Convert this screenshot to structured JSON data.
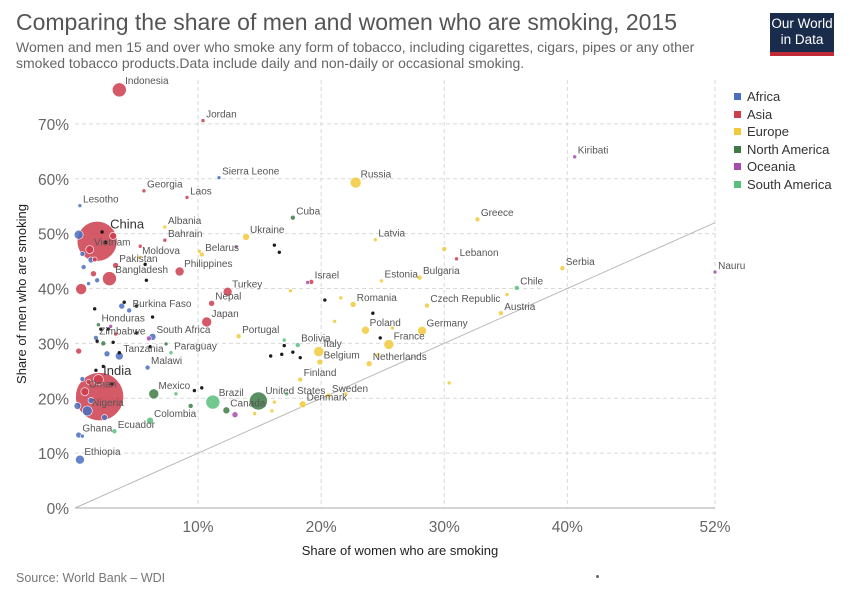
{
  "title": "Comparing the share of men and women who are smoking, 2015",
  "subtitle": "Women and men 15 and over who smoke any form of tobacco, including cigarettes, cigars, pipes or any other smoked tobacco products.Data include daily and non-daily or occasional smoking.",
  "logo": {
    "line1": "Our World",
    "line2": "in Data"
  },
  "source": "Source: World Bank – WDI",
  "colors": {
    "Africa": "#4a6fc1",
    "Asia": "#cc3d4e",
    "Europe": "#f2c93a",
    "North America": "#3e7a45",
    "Oceania": "#a64cb0",
    "South America": "#59c07c",
    "unlabeled": "#111111"
  },
  "chart_data": {
    "type": "scatter",
    "title": "Comparing the share of men and women who are smoking, 2015",
    "xlabel": "Share of women who are smoking",
    "ylabel": "Share of men who are smoking",
    "xlim": [
      0,
      52
    ],
    "ylim": [
      0,
      78
    ],
    "x_ticks": [
      {
        "value": 10,
        "label": "10%"
      },
      {
        "value": 20,
        "label": "20%"
      },
      {
        "value": 30,
        "label": "30%"
      },
      {
        "value": 40,
        "label": "40%"
      },
      {
        "value": 52,
        "label": "52%"
      }
    ],
    "y_ticks": [
      {
        "value": 0,
        "label": "0%"
      },
      {
        "value": 10,
        "label": "10%"
      },
      {
        "value": 20,
        "label": "20%"
      },
      {
        "value": 30,
        "label": "30%"
      },
      {
        "value": 40,
        "label": "40%"
      },
      {
        "value": 50,
        "label": "50%"
      },
      {
        "value": 60,
        "label": "60%"
      },
      {
        "value": 70,
        "label": "70%"
      }
    ],
    "grid": true,
    "legend_position": "right",
    "legend": [
      "Africa",
      "Asia",
      "Europe",
      "North America",
      "Oceania",
      "South America"
    ],
    "reference_line": "x = y",
    "points": [
      {
        "name": "Indonesia",
        "region": "Asia",
        "x": 3.6,
        "y": 76.2,
        "size": 7
      },
      {
        "name": "Jordan",
        "region": "Asia",
        "x": 10.4,
        "y": 70.6,
        "size": 2
      },
      {
        "name": "Sierra Leone",
        "region": "Africa",
        "x": 11.7,
        "y": 60.2,
        "size": 2
      },
      {
        "name": "Russia",
        "region": "Europe",
        "x": 22.8,
        "y": 59.3,
        "size": 5.5
      },
      {
        "name": "Kiribati",
        "region": "Oceania",
        "x": 40.6,
        "y": 64.0,
        "size": 2
      },
      {
        "name": "Georgia",
        "region": "Asia",
        "x": 5.6,
        "y": 57.8,
        "size": 2
      },
      {
        "name": "Laos",
        "region": "Asia",
        "x": 9.1,
        "y": 56.6,
        "size": 2
      },
      {
        "name": "Lesotho",
        "region": "Africa",
        "x": 0.4,
        "y": 55.1,
        "size": 2
      },
      {
        "name": "Cuba",
        "region": "North America",
        "x": 17.7,
        "y": 52.9,
        "size": 2.5
      },
      {
        "name": "Greece",
        "region": "Europe",
        "x": 32.7,
        "y": 52.6,
        "size": 2.5
      },
      {
        "name": "China",
        "region": "Asia",
        "x": 1.8,
        "y": 48.6,
        "size": 20
      },
      {
        "name": "Vietnam",
        "region": "Asia",
        "x": 1.2,
        "y": 47.1,
        "size": 4
      },
      {
        "name": "Albania",
        "region": "Europe",
        "x": 7.3,
        "y": 51.2,
        "size": 2
      },
      {
        "name": "Bahrain",
        "region": "Asia",
        "x": 7.3,
        "y": 48.8,
        "size": 2
      },
      {
        "name": "Ukraine",
        "region": "Europe",
        "x": 13.9,
        "y": 49.4,
        "size": 3.5
      },
      {
        "name": "Latvia",
        "region": "Europe",
        "x": 24.4,
        "y": 48.9,
        "size": 2
      },
      {
        "name": "Moldova",
        "region": "Europe",
        "x": 5.2,
        "y": 45.7,
        "size": 2
      },
      {
        "name": "Belarus",
        "region": "Europe",
        "x": 10.3,
        "y": 46.2,
        "size": 2.5
      },
      {
        "name": "Lebanon",
        "region": "Asia",
        "x": 31.0,
        "y": 45.4,
        "size": 2
      },
      {
        "name": "Serbia",
        "region": "Europe",
        "x": 39.6,
        "y": 43.7,
        "size": 2.5
      },
      {
        "name": "Nauru",
        "region": "Oceania",
        "x": 52.0,
        "y": 43.0,
        "size": 2
      },
      {
        "name": "Pakistan",
        "region": "Asia",
        "x": 3.3,
        "y": 44.2,
        "size": 3
      },
      {
        "name": "Philippines",
        "region": "Asia",
        "x": 8.5,
        "y": 43.1,
        "size": 4.5
      },
      {
        "name": "Bangladesh",
        "region": "Asia",
        "x": 2.8,
        "y": 41.8,
        "size": 7
      },
      {
        "name": "Israel",
        "region": "Asia",
        "x": 19.2,
        "y": 41.2,
        "size": 2.5
      },
      {
        "name": "Estonia",
        "region": "Europe",
        "x": 24.9,
        "y": 41.4,
        "size": 2
      },
      {
        "name": "Bulgaria",
        "region": "Europe",
        "x": 28.0,
        "y": 42.0,
        "size": 2.5
      },
      {
        "name": "Chile",
        "region": "South America",
        "x": 35.9,
        "y": 40.1,
        "size": 2.5
      },
      {
        "name": "Turkey",
        "region": "Asia",
        "x": 12.4,
        "y": 39.4,
        "size": 4.5
      },
      {
        "name": "Nepal",
        "region": "Asia",
        "x": 11.1,
        "y": 37.3,
        "size": 3
      },
      {
        "name": "Burkina Faso",
        "region": "Africa",
        "x": 4.4,
        "y": 36.0,
        "size": 2.5
      },
      {
        "name": "Romania",
        "region": "Europe",
        "x": 22.6,
        "y": 37.1,
        "size": 3
      },
      {
        "name": "Czech Republic",
        "region": "Europe",
        "x": 28.6,
        "y": 36.9,
        "size": 2.5
      },
      {
        "name": "Austria",
        "region": "Europe",
        "x": 34.6,
        "y": 35.5,
        "size": 2.5
      },
      {
        "name": "Japan",
        "region": "Asia",
        "x": 10.7,
        "y": 33.9,
        "size": 5
      },
      {
        "name": "Poland",
        "region": "Europe",
        "x": 23.6,
        "y": 32.4,
        "size": 4
      },
      {
        "name": "Germany",
        "region": "Europe",
        "x": 28.2,
        "y": 32.3,
        "size": 4.5
      },
      {
        "name": "Honduras",
        "region": "North America",
        "x": 1.9,
        "y": 33.4,
        "size": 2
      },
      {
        "name": "Zimbabwe",
        "region": "Africa",
        "x": 1.7,
        "y": 31.0,
        "size": 2.5
      },
      {
        "name": "South Africa",
        "region": "Africa",
        "x": 6.3,
        "y": 31.2,
        "size": 3.5
      },
      {
        "name": "Portugal",
        "region": "Europe",
        "x": 13.3,
        "y": 31.3,
        "size": 2.5
      },
      {
        "name": "Bolivia",
        "region": "South America",
        "x": 18.1,
        "y": 29.7,
        "size": 2.5
      },
      {
        "name": "France",
        "region": "Europe",
        "x": 25.5,
        "y": 29.8,
        "size": 5
      },
      {
        "name": "Tanzania",
        "region": "Africa",
        "x": 3.6,
        "y": 27.7,
        "size": 4
      },
      {
        "name": "Paraguay",
        "region": "South America",
        "x": 7.8,
        "y": 28.3,
        "size": 2
      },
      {
        "name": "Italy",
        "region": "Europe",
        "x": 19.8,
        "y": 28.5,
        "size": 5
      },
      {
        "name": "Belgium",
        "region": "Europe",
        "x": 19.9,
        "y": 26.6,
        "size": 3
      },
      {
        "name": "Netherlands",
        "region": "Europe",
        "x": 23.9,
        "y": 26.3,
        "size": 3
      },
      {
        "name": "Malawi",
        "region": "Africa",
        "x": 5.9,
        "y": 25.6,
        "size": 2.5
      },
      {
        "name": "India",
        "region": "Asia",
        "x": 1.9,
        "y": 23.4,
        "size": 5
      },
      {
        "name": "Finland",
        "region": "Europe",
        "x": 18.3,
        "y": 23.4,
        "size": 2.5
      },
      {
        "name": "Oman",
        "region": "Asia",
        "x": 0.8,
        "y": 21.2,
        "size": 4
      },
      {
        "name": "Mexico",
        "region": "North America",
        "x": 6.4,
        "y": 20.8,
        "size": 5
      },
      {
        "name": "Brazil",
        "region": "South America",
        "x": 11.2,
        "y": 19.3,
        "size": 7
      },
      {
        "name": "United States",
        "region": "North America",
        "x": 14.9,
        "y": 19.5,
        "size": 9
      },
      {
        "name": "Sweden",
        "region": "Europe",
        "x": 20.6,
        "y": 20.5,
        "size": 2.5
      },
      {
        "name": "Denmark",
        "region": "Europe",
        "x": 18.5,
        "y": 18.9,
        "size": 3.5
      },
      {
        "name": "Canada",
        "region": "North America",
        "x": 12.3,
        "y": 17.8,
        "size": 3.5
      },
      {
        "name": "Nigeria",
        "region": "Africa",
        "x": 1.0,
        "y": 17.7,
        "size": 5
      },
      {
        "name": "Colombia",
        "region": "South America",
        "x": 6.1,
        "y": 15.9,
        "size": 3.5
      },
      {
        "name": "Ecuador",
        "region": "South America",
        "x": 3.2,
        "y": 14.0,
        "size": 2.5
      },
      {
        "name": "Ghana",
        "region": "Africa",
        "x": 0.3,
        "y": 13.3,
        "size": 3
      },
      {
        "name": "Ethiopia",
        "region": "Africa",
        "x": 0.4,
        "y": 8.8,
        "size": 4.5
      }
    ],
    "unlabeled_points": [
      {
        "region": "Asia",
        "x": 2.0,
        "y": 20.3,
        "size": 24
      },
      {
        "region": "Africa",
        "x": 0.3,
        "y": 49.8,
        "size": 4.5
      },
      {
        "region": "Asia",
        "x": 0.5,
        "y": 39.9,
        "size": 5.5
      },
      {
        "region": "Asia",
        "x": 0.3,
        "y": 28.6,
        "size": 3
      },
      {
        "region": "Asia",
        "x": 3.1,
        "y": 49.6,
        "size": 3.5
      },
      {
        "region": "Asia",
        "x": 1.5,
        "y": 42.7,
        "size": 3
      },
      {
        "region": "Africa",
        "x": 0.6,
        "y": 46.3,
        "size": 2.5
      },
      {
        "region": "Africa",
        "x": 1.3,
        "y": 45.2,
        "size": 3
      },
      {
        "region": "Africa",
        "x": 0.7,
        "y": 43.9,
        "size": 2.5
      },
      {
        "region": "Africa",
        "x": 1.8,
        "y": 41.5,
        "size": 2.5
      },
      {
        "region": "Africa",
        "x": 1.1,
        "y": 40.9,
        "size": 2
      },
      {
        "region": "Africa",
        "x": 3.8,
        "y": 36.8,
        "size": 3
      },
      {
        "region": "Africa",
        "x": 2.6,
        "y": 28.1,
        "size": 3
      },
      {
        "region": "Africa",
        "x": 0.6,
        "y": 23.5,
        "size": 2.5
      },
      {
        "region": "Africa",
        "x": 0.2,
        "y": 18.6,
        "size": 3.5
      },
      {
        "region": "Africa",
        "x": 1.3,
        "y": 19.6,
        "size": 3
      },
      {
        "region": "Africa",
        "x": 2.4,
        "y": 16.5,
        "size": 3
      },
      {
        "region": "Africa",
        "x": 0.6,
        "y": 13.1,
        "size": 2
      },
      {
        "region": "Asia",
        "x": 1.1,
        "y": 23.0,
        "size": 2.5
      },
      {
        "region": "Asia",
        "x": 1.6,
        "y": 45.3,
        "size": 2.5
      },
      {
        "region": "Asia",
        "x": 5.3,
        "y": 47.7,
        "size": 2
      },
      {
        "region": "Asia",
        "x": 3.3,
        "y": 31.7,
        "size": 2
      },
      {
        "region": "Oceania",
        "x": 13.1,
        "y": 47.6,
        "size": 2
      },
      {
        "region": "Oceania",
        "x": 18.9,
        "y": 41.1,
        "size": 2
      },
      {
        "region": "Oceania",
        "x": 6.0,
        "y": 30.9,
        "size": 2.5
      },
      {
        "region": "Oceania",
        "x": 13.0,
        "y": 17.0,
        "size": 3
      },
      {
        "region": "Oceania",
        "x": 2.9,
        "y": 33.1,
        "size": 2
      },
      {
        "region": "Europe",
        "x": 17.5,
        "y": 39.6,
        "size": 2
      },
      {
        "region": "Europe",
        "x": 21.6,
        "y": 38.3,
        "size": 2
      },
      {
        "region": "Europe",
        "x": 22.0,
        "y": 20.8,
        "size": 2
      },
      {
        "region": "Europe",
        "x": 16.0,
        "y": 17.7,
        "size": 2
      },
      {
        "region": "Europe",
        "x": 16.2,
        "y": 19.3,
        "size": 2
      },
      {
        "region": "Europe",
        "x": 30.0,
        "y": 47.2,
        "size": 2.5
      },
      {
        "region": "Europe",
        "x": 35.1,
        "y": 38.9,
        "size": 2
      },
      {
        "region": "Europe",
        "x": 21.1,
        "y": 34.0,
        "size": 2
      },
      {
        "region": "Europe",
        "x": 25.8,
        "y": 32.8,
        "size": 2
      },
      {
        "region": "Europe",
        "x": 14.6,
        "y": 17.2,
        "size": 2
      },
      {
        "region": "Europe",
        "x": 30.4,
        "y": 22.8,
        "size": 2
      },
      {
        "region": "Europe",
        "x": 24.6,
        "y": 27.9,
        "size": 2
      },
      {
        "region": "Europe",
        "x": 10.1,
        "y": 46.8,
        "size": 2
      },
      {
        "region": "North America",
        "x": 2.3,
        "y": 30.0,
        "size": 2.5
      },
      {
        "region": "North America",
        "x": 9.4,
        "y": 18.6,
        "size": 2.5
      },
      {
        "region": "North America",
        "x": 7.4,
        "y": 29.9,
        "size": 2
      },
      {
        "region": "South America",
        "x": 17.0,
        "y": 30.6,
        "size": 2
      },
      {
        "region": "South America",
        "x": 8.2,
        "y": 20.8,
        "size": 2
      },
      {
        "region": "South America",
        "x": 17.2,
        "y": 20.8,
        "size": 2
      },
      {
        "region": "unlabeled",
        "x": 2.2,
        "y": 50.3,
        "size": 1.7
      },
      {
        "region": "unlabeled",
        "x": 2.5,
        "y": 48.4,
        "size": 1.7
      },
      {
        "region": "unlabeled",
        "x": 16.2,
        "y": 47.9,
        "size": 1.7
      },
      {
        "region": "unlabeled",
        "x": 16.6,
        "y": 46.6,
        "size": 1.7
      },
      {
        "region": "unlabeled",
        "x": 5.7,
        "y": 44.4,
        "size": 1.7
      },
      {
        "region": "unlabeled",
        "x": 5.8,
        "y": 41.5,
        "size": 1.7
      },
      {
        "region": "unlabeled",
        "x": 4.0,
        "y": 37.5,
        "size": 1.7
      },
      {
        "region": "unlabeled",
        "x": 5.0,
        "y": 36.8,
        "size": 1.7
      },
      {
        "region": "unlabeled",
        "x": 6.3,
        "y": 34.8,
        "size": 1.7
      },
      {
        "region": "unlabeled",
        "x": 20.3,
        "y": 37.9,
        "size": 1.7
      },
      {
        "region": "unlabeled",
        "x": 24.2,
        "y": 35.5,
        "size": 1.7
      },
      {
        "region": "unlabeled",
        "x": 1.6,
        "y": 36.3,
        "size": 1.7
      },
      {
        "region": "unlabeled",
        "x": 2.1,
        "y": 32.6,
        "size": 1.7
      },
      {
        "region": "unlabeled",
        "x": 2.7,
        "y": 32.6,
        "size": 1.7
      },
      {
        "region": "unlabeled",
        "x": 1.8,
        "y": 30.4,
        "size": 1.7
      },
      {
        "region": "unlabeled",
        "x": 3.1,
        "y": 30.2,
        "size": 1.7
      },
      {
        "region": "unlabeled",
        "x": 3.6,
        "y": 28.3,
        "size": 1.7
      },
      {
        "region": "unlabeled",
        "x": 5.0,
        "y": 31.9,
        "size": 1.7
      },
      {
        "region": "unlabeled",
        "x": 6.1,
        "y": 29.4,
        "size": 1.7
      },
      {
        "region": "unlabeled",
        "x": 17.0,
        "y": 29.6,
        "size": 1.7
      },
      {
        "region": "unlabeled",
        "x": 16.8,
        "y": 28.0,
        "size": 1.7
      },
      {
        "region": "unlabeled",
        "x": 17.7,
        "y": 28.4,
        "size": 1.7
      },
      {
        "region": "unlabeled",
        "x": 18.3,
        "y": 27.4,
        "size": 1.7
      },
      {
        "region": "unlabeled",
        "x": 15.9,
        "y": 27.7,
        "size": 1.7
      },
      {
        "region": "unlabeled",
        "x": 9.7,
        "y": 21.4,
        "size": 1.7
      },
      {
        "region": "unlabeled",
        "x": 10.3,
        "y": 21.9,
        "size": 1.7
      },
      {
        "region": "unlabeled",
        "x": 2.3,
        "y": 25.8,
        "size": 1.7
      },
      {
        "region": "unlabeled",
        "x": 1.7,
        "y": 25.1,
        "size": 1.7
      },
      {
        "region": "unlabeled",
        "x": 24.8,
        "y": 31.0,
        "size": 1.7
      },
      {
        "region": "unlabeled",
        "x": 3.0,
        "y": 22.6,
        "size": 1.7
      }
    ]
  }
}
